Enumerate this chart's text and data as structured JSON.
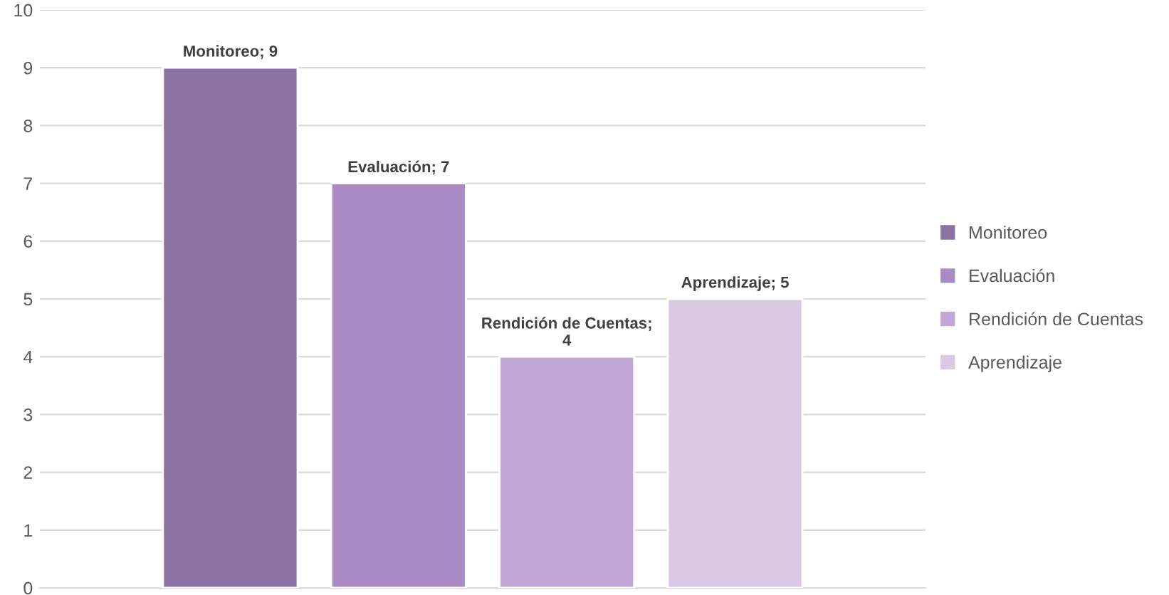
{
  "chart_data": {
    "type": "bar",
    "categories": [
      null
    ],
    "series": [
      {
        "name": "Monitoreo",
        "color": "#8b72a2",
        "values": [
          9
        ],
        "value_labels": [
          "Monitoreo; 9"
        ]
      },
      {
        "name": "Evaluación",
        "color": "#a98ac4",
        "values": [
          7
        ],
        "value_labels": [
          "Evaluación; 7"
        ]
      },
      {
        "name": "Rendición de Cuentas",
        "color": "#c3a7d7",
        "values": [
          4
        ],
        "value_labels": [
          "Rendición de Cuentas;\n4"
        ]
      },
      {
        "name": "Aprendizaje",
        "color": "#d9c9e4",
        "values": [
          5
        ],
        "value_labels": [
          "Aprendizaje; 5"
        ]
      }
    ],
    "ylim": [
      0,
      10
    ],
    "yticks": [
      0,
      1,
      2,
      3,
      4,
      5,
      6,
      7,
      8,
      9,
      10
    ],
    "grid": "y",
    "legend": "right"
  }
}
